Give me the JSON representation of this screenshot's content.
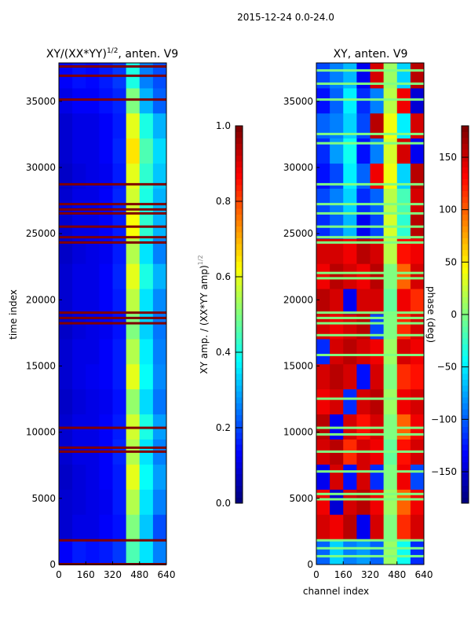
{
  "suptitle": "2015-12-24 0.0-24.0",
  "chart_data": [
    {
      "type": "heatmap",
      "title_main": "XY/(XX*YY)",
      "title_exp": "1/2",
      "title_tail": ", anten. V9",
      "xlabel": "",
      "ylabel": "time index",
      "xlim": [
        0,
        640
      ],
      "ylim": [
        0,
        37900
      ],
      "xticks": [
        "0",
        "160",
        "320",
        "480",
        "640"
      ],
      "yticks": [
        "0",
        "5000",
        "10000",
        "15000",
        "20000",
        "25000",
        "30000",
        "35000"
      ],
      "colormap": "jet",
      "colorbar": {
        "label_main": "XY amp. / (XX*YY amp)",
        "label_exp": "1/2",
        "range": [
          0,
          1
        ],
        "ticks": [
          "0.0",
          "0.2",
          "0.4",
          "0.6",
          "0.8",
          "1.0"
        ]
      },
      "flagged_times": [
        0,
        1800,
        8500,
        8800,
        10300,
        18200,
        18600,
        19000,
        24300,
        24700,
        25500,
        26500,
        26800,
        27200,
        28700,
        35100,
        36900,
        37600
      ],
      "flag_value": 1.0,
      "values": [
        [
          0.12,
          0.15,
          0.14,
          0.15,
          0.18,
          0.45,
          0.35,
          0.25
        ],
        [
          0.08,
          0.1,
          0.1,
          0.12,
          0.14,
          0.5,
          0.32,
          0.2
        ],
        [
          0.08,
          0.09,
          0.1,
          0.11,
          0.15,
          0.55,
          0.35,
          0.25
        ],
        [
          0.07,
          0.09,
          0.1,
          0.12,
          0.15,
          0.6,
          0.38,
          0.28
        ],
        [
          0.08,
          0.1,
          0.1,
          0.12,
          0.16,
          0.55,
          0.35,
          0.25
        ],
        [
          0.08,
          0.1,
          0.1,
          0.12,
          0.15,
          0.58,
          0.4,
          0.28
        ],
        [
          0.07,
          0.09,
          0.1,
          0.11,
          0.14,
          0.52,
          0.34,
          0.24
        ],
        [
          0.08,
          0.1,
          0.11,
          0.12,
          0.15,
          0.6,
          0.38,
          0.26
        ],
        [
          0.08,
          0.1,
          0.1,
          0.12,
          0.15,
          0.55,
          0.36,
          0.25
        ],
        [
          0.07,
          0.09,
          0.1,
          0.11,
          0.14,
          0.5,
          0.33,
          0.24
        ],
        [
          0.08,
          0.1,
          0.1,
          0.12,
          0.15,
          0.56,
          0.35,
          0.26
        ],
        [
          0.08,
          0.1,
          0.1,
          0.12,
          0.16,
          0.6,
          0.4,
          0.3
        ],
        [
          0.07,
          0.09,
          0.1,
          0.11,
          0.15,
          0.55,
          0.35,
          0.25
        ],
        [
          0.08,
          0.1,
          0.1,
          0.12,
          0.15,
          0.62,
          0.42,
          0.3
        ],
        [
          0.08,
          0.1,
          0.1,
          0.12,
          0.16,
          0.58,
          0.4,
          0.3
        ],
        [
          0.07,
          0.09,
          0.1,
          0.11,
          0.15,
          0.6,
          0.42,
          0.32
        ],
        [
          0.08,
          0.1,
          0.1,
          0.12,
          0.16,
          0.65,
          0.45,
          0.34
        ],
        [
          0.08,
          0.1,
          0.1,
          0.12,
          0.15,
          0.6,
          0.4,
          0.3
        ],
        [
          0.1,
          0.12,
          0.12,
          0.14,
          0.16,
          0.5,
          0.3,
          0.22
        ],
        [
          0.12,
          0.14,
          0.13,
          0.15,
          0.18,
          0.4,
          0.25,
          0.2
        ]
      ]
    },
    {
      "type": "heatmap",
      "title": "XY, anten. V9",
      "xlabel": "channel index",
      "ylabel": "",
      "xlim": [
        0,
        640
      ],
      "ylim": [
        0,
        37900
      ],
      "xticks": [
        "0",
        "160",
        "320",
        "480",
        "640"
      ],
      "yticks": [
        "0",
        "5000",
        "10000",
        "15000",
        "20000",
        "25000",
        "30000",
        "35000"
      ],
      "colormap": "jet",
      "colorbar": {
        "label": "phase (deg)",
        "range": [
          -180,
          180
        ],
        "ticks": [
          "−150",
          "−100",
          "−50",
          "0",
          "50",
          "100",
          "150"
        ]
      },
      "flagged_times": [
        600,
        1200,
        1800,
        4900,
        5300,
        7000,
        8500,
        9800,
        10300,
        12500,
        15800,
        17300,
        18200,
        18600,
        19000,
        21600,
        22000,
        24300,
        24700,
        25500,
        26500,
        27200,
        28700,
        31800,
        32500,
        35100,
        36300,
        37300
      ],
      "flag_value": 0,
      "values": [
        [
          -100,
          -60,
          -90,
          -80,
          -100,
          10,
          -40,
          -120
        ],
        [
          150,
          140,
          160,
          -140,
          150,
          0,
          120,
          150
        ],
        [
          140,
          -150,
          150,
          160,
          140,
          10,
          100,
          140
        ],
        [
          -140,
          150,
          -130,
          150,
          -120,
          0,
          140,
          -110
        ],
        [
          150,
          160,
          120,
          150,
          140,
          -10,
          130,
          150
        ],
        [
          160,
          -140,
          150,
          130,
          150,
          0,
          100,
          140
        ],
        [
          140,
          150,
          -120,
          150,
          160,
          10,
          140,
          150
        ],
        [
          150,
          160,
          150,
          -130,
          150,
          0,
          120,
          130
        ],
        [
          -120,
          150,
          160,
          150,
          140,
          10,
          150,
          140
        ],
        [
          150,
          140,
          150,
          160,
          -110,
          0,
          120,
          150
        ],
        [
          160,
          150,
          -140,
          150,
          150,
          -10,
          140,
          120
        ],
        [
          140,
          160,
          150,
          140,
          160,
          0,
          100,
          150
        ],
        [
          150,
          150,
          140,
          160,
          150,
          20,
          130,
          140
        ],
        [
          -120,
          -100,
          -70,
          -140,
          -110,
          30,
          -30,
          160
        ],
        [
          -110,
          -90,
          -60,
          -120,
          -100,
          20,
          -20,
          150
        ],
        [
          -130,
          -110,
          -50,
          -100,
          140,
          40,
          -60,
          160
        ],
        [
          -120,
          -80,
          -40,
          -130,
          -90,
          30,
          150,
          -140
        ],
        [
          -100,
          -90,
          -60,
          -110,
          160,
          40,
          -50,
          150
        ],
        [
          -130,
          -100,
          -50,
          -120,
          -90,
          20,
          140,
          -150
        ],
        [
          -110,
          -90,
          -70,
          -140,
          150,
          10,
          -60,
          160
        ]
      ]
    }
  ]
}
